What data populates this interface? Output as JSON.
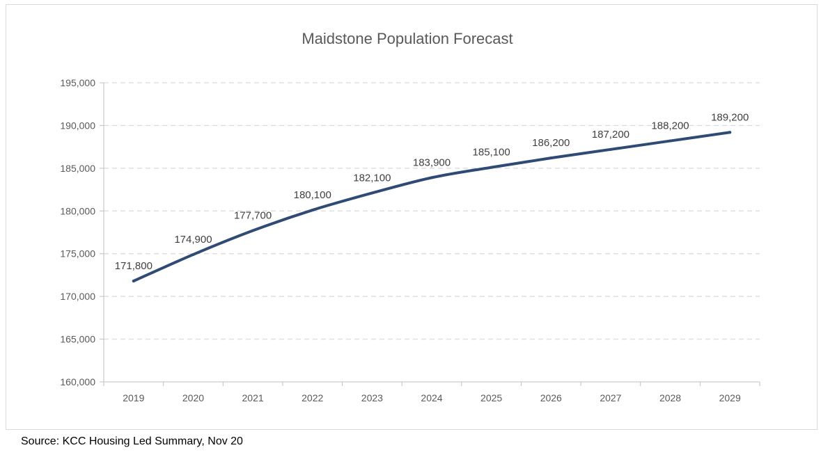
{
  "chart_data": {
    "type": "line",
    "title": "Maidstone Population Forecast",
    "xlabel": "",
    "ylabel": "",
    "categories": [
      "2019",
      "2020",
      "2021",
      "2022",
      "2023",
      "2024",
      "2025",
      "2026",
      "2027",
      "2028",
      "2029"
    ],
    "series": [
      {
        "values": [
          171800,
          174900,
          177700,
          180100,
          182100,
          183900,
          185100,
          186200,
          187200,
          188200,
          189200
        ]
      }
    ],
    "data_labels": [
      "171,800",
      "174,900",
      "177,700",
      "180,100",
      "182,100",
      "183,900",
      "185,100",
      "186,200",
      "187,200",
      "188,200",
      "189,200"
    ],
    "ylim": [
      160000,
      195000
    ],
    "yticks": [
      160000,
      165000,
      170000,
      175000,
      180000,
      185000,
      190000,
      195000
    ],
    "ytick_labels": [
      "160,000",
      "165,000",
      "170,000",
      "175,000",
      "180,000",
      "185,000",
      "190,000",
      "195,000"
    ],
    "grid": true,
    "grid_style": "dashed",
    "legend": "none",
    "colors": {
      "line": "#2e4a75",
      "grid": "#d9d9d9",
      "axis": "#bfbfbf",
      "text": "#595959"
    }
  },
  "source": "Source: KCC Housing Led Summary, Nov 20"
}
